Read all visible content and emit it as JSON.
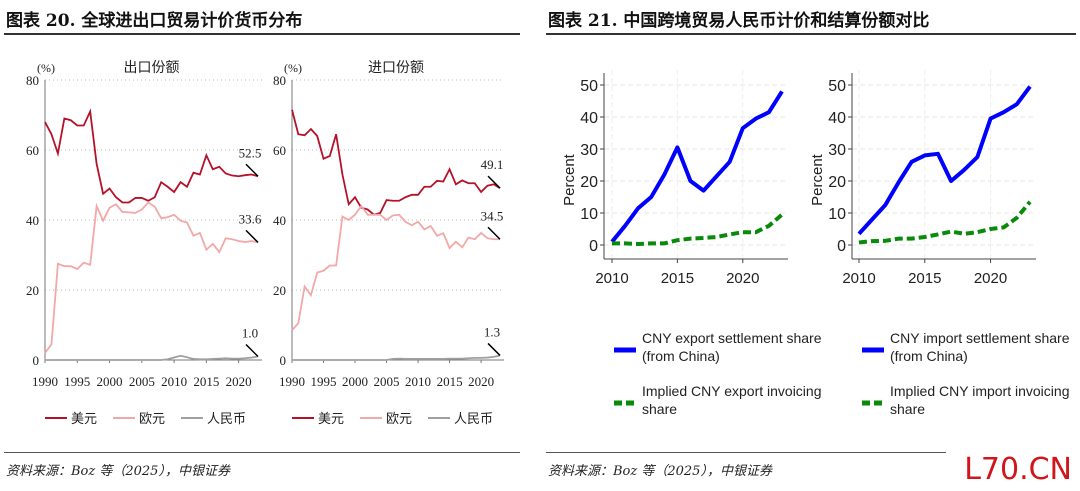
{
  "left_title": "图表 20. 全球进出口贸易计价货币分布",
  "right_title": "图表 21. 中国跨境贸易人民币计价和结算份额对比",
  "left_source": "资料来源：Boz 等（2025），中银证券",
  "right_source": "资料来源：Boz 等（2025），中银证券",
  "watermark": "L70.CN",
  "colors": {
    "usd": "#b5122a",
    "eur": "#f2a8a8",
    "cny": "#a0a0a0",
    "settle": "#0000ff",
    "invoice": "#0a8a0a"
  },
  "chart_data": [
    {
      "type": "line",
      "title": "出口份额",
      "ylabel": "(%)",
      "ylim": [
        0,
        80
      ],
      "yticks": [
        0,
        20,
        40,
        60,
        80
      ],
      "xticks": [
        1990,
        1995,
        2000,
        2005,
        2010,
        2015,
        2020
      ],
      "x_start": 1990,
      "x_end": 2023,
      "legend": [
        "美元",
        "欧元",
        "人民币"
      ],
      "end_labels": [
        "52.5",
        "33.6",
        "1.0"
      ],
      "series": [
        {
          "name": "美元",
          "values": [
            68,
            64.5,
            59,
            69,
            68.5,
            67,
            67,
            71,
            56,
            47.5,
            49,
            46.5,
            45,
            45,
            46.3,
            46.3,
            45.5,
            46.5,
            50.8,
            49.5,
            48,
            50.8,
            49.5,
            53.5,
            53,
            58.5,
            54.5,
            55.2,
            53.3,
            52.7,
            52.5,
            52.8,
            53,
            52.5
          ]
        },
        {
          "name": "欧元",
          "values": [
            2,
            4.5,
            27.5,
            26.8,
            26.8,
            26,
            27.8,
            27.2,
            44,
            39.8,
            43.5,
            44.5,
            42.3,
            42.2,
            42,
            43,
            45,
            43.8,
            40.5,
            40.8,
            41.5,
            39.8,
            39.3,
            35.5,
            36.3,
            31.5,
            33.2,
            30.8,
            34.8,
            34.5,
            34,
            33.7,
            34,
            33.6
          ]
        },
        {
          "name": "人民币",
          "values": [
            0,
            0,
            0,
            0,
            0,
            0,
            0,
            0,
            0,
            0,
            0,
            0,
            0,
            0,
            0,
            0,
            0,
            0,
            0,
            0.2,
            0.7,
            1.2,
            0.8,
            0.3,
            0.2,
            0.2,
            0.3,
            0.4,
            0.5,
            0.4,
            0.4,
            0.5,
            0.7,
            1.0
          ]
        }
      ]
    },
    {
      "type": "line",
      "title": "进口份额",
      "ylabel": "(%)",
      "ylim": [
        0,
        80
      ],
      "yticks": [
        0,
        20,
        40,
        60,
        80
      ],
      "xticks": [
        1990,
        1995,
        2000,
        2005,
        2010,
        2015,
        2020
      ],
      "x_start": 1990,
      "x_end": 2023,
      "legend": [
        "美元",
        "欧元",
        "人民币"
      ],
      "end_labels": [
        "49.1",
        "34.5",
        "1.3"
      ],
      "series": [
        {
          "name": "美元",
          "values": [
            71.5,
            64.5,
            64.2,
            66,
            64,
            57.5,
            58.3,
            64.5,
            53,
            44.5,
            46.5,
            43.5,
            43,
            41.5,
            42,
            45.7,
            45.5,
            45.5,
            46.5,
            47.2,
            47.2,
            49.5,
            49.5,
            51.2,
            51,
            54.5,
            50.2,
            51.3,
            50.5,
            50.5,
            48,
            49.8,
            50.2,
            49.1
          ]
        },
        {
          "name": "欧元",
          "values": [
            8.5,
            10.5,
            21,
            18.5,
            25,
            25.5,
            27,
            27,
            41,
            40,
            41.5,
            44,
            41.5,
            41.5,
            41.5,
            40,
            41.3,
            41.5,
            39.5,
            38.5,
            39.5,
            37.3,
            38.3,
            35.5,
            36.2,
            32,
            33.8,
            32.2,
            35,
            34.5,
            36.3,
            34.8,
            34.5,
            34.5
          ]
        },
        {
          "name": "人民币",
          "values": [
            0,
            0,
            0,
            0,
            0,
            0,
            0,
            0,
            0,
            0,
            0,
            0,
            0,
            0,
            0,
            0,
            0.3,
            0.4,
            0.3,
            0.3,
            0.3,
            0.3,
            0.3,
            0.3,
            0.3,
            0.4,
            0.4,
            0.4,
            0.5,
            0.6,
            0.6,
            0.7,
            0.9,
            1.3
          ]
        }
      ]
    },
    {
      "type": "line",
      "ylabel": "Percent",
      "ylim": [
        -4,
        54
      ],
      "yticks": [
        0,
        10,
        20,
        30,
        40,
        50
      ],
      "xticks": [
        2010,
        2015,
        2020
      ],
      "x_start": 2010,
      "x_end": 2023,
      "legend": [
        "CNY export settlement share\n(from China)",
        "Implied CNY export invoicing\nshare"
      ],
      "series": [
        {
          "name": "CNY export settlement share (from China)",
          "values": [
            1,
            6,
            11.5,
            15,
            22,
            30.5,
            20,
            17,
            21.5,
            26,
            36.5,
            39.5,
            41.5,
            48
          ]
        },
        {
          "name": "Implied CNY export invoicing share",
          "values": [
            0.5,
            0.5,
            0.3,
            0.5,
            0.5,
            1.5,
            2,
            2.2,
            2.5,
            3.3,
            4,
            4,
            6,
            9.5
          ]
        }
      ]
    },
    {
      "type": "line",
      "ylabel": "Percent",
      "ylim": [
        -4,
        54
      ],
      "yticks": [
        0,
        10,
        20,
        30,
        40,
        50
      ],
      "xticks": [
        2010,
        2015,
        2020
      ],
      "x_start": 2010,
      "x_end": 2023,
      "legend": [
        "CNY import settlement share\n(from China)",
        "Implied CNY import invoicing\nshare"
      ],
      "series": [
        {
          "name": "CNY import settlement share (from China)",
          "values": [
            3.5,
            8,
            12.5,
            19.5,
            26,
            28,
            28.5,
            20,
            23.5,
            27.5,
            39.5,
            41.5,
            44,
            49.5
          ]
        },
        {
          "name": "Implied CNY import invoicing share",
          "values": [
            0.8,
            1.2,
            1.3,
            2,
            2,
            2.5,
            3.3,
            4.2,
            3.5,
            4,
            5,
            5.5,
            8.5,
            13.5
          ]
        }
      ]
    }
  ]
}
